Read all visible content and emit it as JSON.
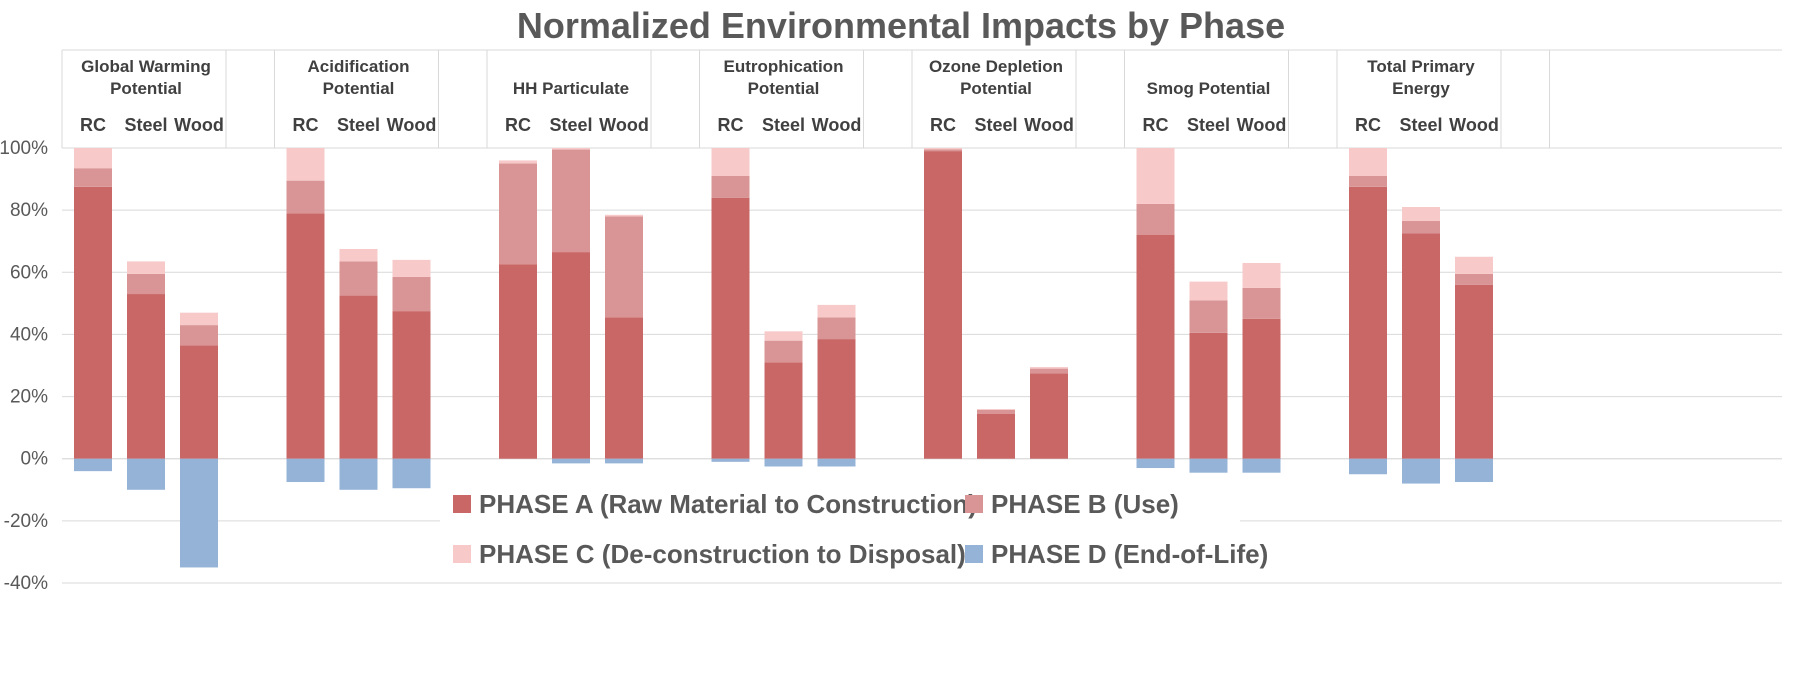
{
  "chart_data": {
    "type": "bar",
    "stacked": true,
    "title": "Normalized Environmental Impacts by Phase",
    "xlabel": "",
    "ylabel": "",
    "ylim": [
      -40,
      100
    ],
    "yticks": [
      "-40%",
      "-20%",
      "0%",
      "20%",
      "40%",
      "60%",
      "80%",
      "100%"
    ],
    "ytick_values": [
      -40,
      -20,
      0,
      20,
      40,
      60,
      80,
      100
    ],
    "grid": true,
    "legend_position": "bottom-center",
    "groups": [
      "Global Warming Potential",
      "Acidification Potential",
      "HH Particulate",
      "Eutrophication Potential",
      "Ozone Depletion Potential",
      "Smog Potential",
      "Total Primary Energy"
    ],
    "categories": [
      "RC",
      "Steel",
      "Wood"
    ],
    "series": [
      {
        "name": "PHASE A (Raw Material to Construction)",
        "color": "#c96767",
        "values": [
          [
            87.5,
            53,
            36.5
          ],
          [
            79,
            52.5,
            47.5
          ],
          [
            62.5,
            66.5,
            45.5
          ],
          [
            84,
            31,
            38.5
          ],
          [
            99,
            14.5,
            27.5
          ],
          [
            72,
            40.5,
            45
          ],
          [
            87.5,
            72.5,
            56
          ]
        ]
      },
      {
        "name": "PHASE B (Use)",
        "color": "#d99595",
        "values": [
          [
            6,
            6.5,
            6.5
          ],
          [
            10.5,
            11,
            11
          ],
          [
            32.5,
            33,
            32.5
          ],
          [
            7,
            7,
            7
          ],
          [
            0.6,
            1.2,
            1.5
          ],
          [
            10,
            10.5,
            10
          ],
          [
            3.5,
            4,
            3.5
          ]
        ]
      },
      {
        "name": "PHASE C (De-construction to Disposal)",
        "color": "#f7c9c9",
        "values": [
          [
            6.5,
            4,
            4
          ],
          [
            10.5,
            4,
            5.5
          ],
          [
            1,
            0.5,
            0.5
          ],
          [
            9,
            3,
            4
          ],
          [
            0.4,
            0.3,
            0.5
          ],
          [
            18,
            6,
            8
          ],
          [
            9,
            4.5,
            5.5
          ]
        ]
      },
      {
        "name": "PHASE D (End-of-Life)",
        "color": "#95b3d7",
        "values": [
          [
            -4,
            -10,
            -35
          ],
          [
            -7.5,
            -10,
            -9.5
          ],
          [
            0,
            -1.5,
            -1.5
          ],
          [
            -1,
            -2.5,
            -2.5
          ],
          [
            0,
            0,
            0
          ],
          [
            -3,
            -4.5,
            -4.5
          ],
          [
            -5,
            -8,
            -7.5
          ]
        ]
      }
    ]
  }
}
